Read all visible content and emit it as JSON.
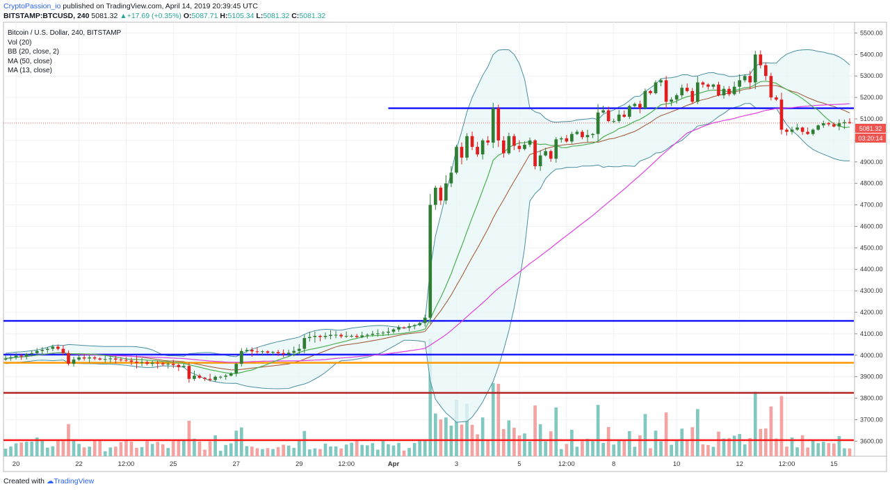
{
  "header": {
    "author": "CryptoPassion_io",
    "published_text": "published on TradingView.com, April 14, 2019 20:39:45 UTC"
  },
  "symbol_bar": {
    "symbol": "BITSTAMP:BTCUSD, 240",
    "last": "5081.32",
    "change": "+17.69 (+0.35%)",
    "o_label": "O:",
    "o": "5087.71",
    "h_label": "H:",
    "h": "5105.34",
    "l_label": "L:",
    "l": "5081.32",
    "c_label": "C:",
    "c": "5081.32"
  },
  "legend": {
    "title": "Bitcoin / U.S. Dollar, 240, BITSTAMP",
    "items": [
      "Vol (20)",
      "BB (20, close, 2)",
      "MA (50, close)",
      "MA (13, close)"
    ]
  },
  "footer": {
    "prefix": "Created with",
    "brand": "TradingView"
  },
  "price_badge": {
    "value": "5081.32",
    "countdown": "03:20:14"
  },
  "chart_data": {
    "type": "candlestick",
    "symbol": "BTCUSD",
    "interval": "240",
    "exchange": "BITSTAMP",
    "ylim": [
      3530,
      5550
    ],
    "y_ticks": [
      3600,
      3700,
      3800,
      3900,
      4000,
      4100,
      4200,
      4300,
      4400,
      4500,
      4600,
      4700,
      4800,
      4900,
      5000,
      5100,
      5200,
      5300,
      5400,
      5500
    ],
    "x_ticks": [
      {
        "label": "20",
        "bar": 2
      },
      {
        "label": "22",
        "bar": 14
      },
      {
        "label": "12:00",
        "bar": 23
      },
      {
        "label": "25",
        "bar": 32
      },
      {
        "label": "27",
        "bar": 44
      },
      {
        "label": "29",
        "bar": 56
      },
      {
        "label": "12:00",
        "bar": 65
      },
      {
        "label": "Apr",
        "bar": 74
      },
      {
        "label": "3",
        "bar": 86
      },
      {
        "label": "5",
        "bar": 98
      },
      {
        "label": "12:00",
        "bar": 107
      },
      {
        "label": "8",
        "bar": 116
      },
      {
        "label": "10",
        "bar": 128
      },
      {
        "label": "12",
        "bar": 140
      },
      {
        "label": "12:00",
        "bar": 149
      },
      {
        "label": "15",
        "bar": 158
      }
    ],
    "close": [
      3985,
      3990,
      3998,
      3995,
      4005,
      4010,
      4020,
      4025,
      4030,
      4040,
      4030,
      4010,
      3960,
      3980,
      3990,
      3985,
      3990,
      3985,
      3980,
      3982,
      3985,
      3980,
      3978,
      3975,
      3970,
      3965,
      3968,
      3960,
      3965,
      3962,
      3958,
      3960,
      3955,
      3945,
      3950,
      3890,
      3905,
      3895,
      3890,
      3885,
      3900,
      3900,
      3905,
      3915,
      3960,
      4020,
      4025,
      4018,
      4015,
      4018,
      4012,
      4015,
      4010,
      4005,
      4012,
      4020,
      4030,
      4080,
      4085,
      4090,
      4085,
      4090,
      4095,
      4095,
      4088,
      4090,
      4090,
      4085,
      4092,
      4095,
      4100,
      4102,
      4105,
      4110,
      4120,
      4130,
      4128,
      4135,
      4140,
      4150,
      4175,
      4700,
      4780,
      4720,
      4800,
      4850,
      4970,
      4920,
      5020,
      4970,
      4935,
      5000,
      4990,
      5150,
      5000,
      4940,
      5020,
      4975,
      4960,
      4980,
      5000,
      4880,
      4930,
      4950,
      4915,
      5005,
      5010,
      4995,
      5030,
      5040,
      5015,
      5025,
      5030,
      5130,
      5140,
      5090,
      5090,
      5120,
      5110,
      5160,
      5170,
      5150,
      5230,
      5220,
      5270,
      5280,
      5180,
      5190,
      5210,
      5245,
      5230,
      5180,
      5270,
      5260,
      5250,
      5260,
      5210,
      5240,
      5215,
      5250,
      5280,
      5300,
      5270,
      5400,
      5350,
      5300,
      5200,
      5190,
      5050,
      5040,
      5050,
      5060,
      5040,
      5030,
      5050,
      5070,
      5080,
      5075,
      5065,
      5080,
      5085,
      5081
    ]
  }
}
